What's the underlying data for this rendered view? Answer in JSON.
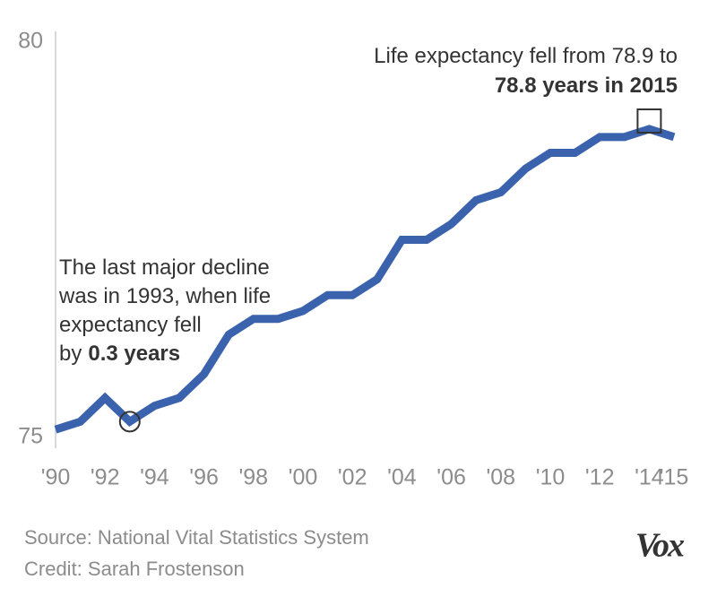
{
  "chart_data": {
    "type": "line",
    "x": [
      1990,
      1991,
      1992,
      1993,
      1994,
      1995,
      1996,
      1997,
      1998,
      1999,
      2000,
      2001,
      2002,
      2003,
      2004,
      2005,
      2006,
      2007,
      2008,
      2009,
      2010,
      2011,
      2012,
      2013,
      2014,
      2015
    ],
    "series": [
      {
        "name": "Life expectancy",
        "color": "#3b63ad",
        "values": [
          75.1,
          75.2,
          75.5,
          75.2,
          75.4,
          75.5,
          75.8,
          76.3,
          76.5,
          76.5,
          76.6,
          76.8,
          76.8,
          77.0,
          77.5,
          77.5,
          77.7,
          78.0,
          78.1,
          78.4,
          78.6,
          78.6,
          78.8,
          78.8,
          78.9,
          78.8
        ]
      }
    ],
    "xlim": [
      1990,
      2015
    ],
    "xticks": [
      {
        "value": 1990,
        "label": "'90"
      },
      {
        "value": 1992,
        "label": "'92"
      },
      {
        "value": 1994,
        "label": "'94"
      },
      {
        "value": 1996,
        "label": "'96"
      },
      {
        "value": 1998,
        "label": "'98"
      },
      {
        "value": 2000,
        "label": "'00"
      },
      {
        "value": 2002,
        "label": "'02"
      },
      {
        "value": 2004,
        "label": "'04"
      },
      {
        "value": 2006,
        "label": "'06"
      },
      {
        "value": 2008,
        "label": "'08"
      },
      {
        "value": 2010,
        "label": "'10"
      },
      {
        "value": 2012,
        "label": "'12"
      },
      {
        "value": 2014,
        "label": "'14"
      },
      {
        "value": 2015,
        "label": "'15"
      }
    ],
    "ylim": [
      75,
      80
    ],
    "yticks": [
      75,
      80
    ],
    "annotations": [
      {
        "lines": [
          "Life expectancy fell from 78.9 to"
        ],
        "bold": "78.8 years in 2015"
      },
      {
        "lines": [
          "The last major decline",
          "was in 1993, when life",
          "expectancy fell",
          "by"
        ],
        "bold": "0.3 years"
      }
    ],
    "source": "Source: National Vital Statistics System",
    "credit": "Credit: Sarah Frostenson",
    "logo": "Vox"
  }
}
